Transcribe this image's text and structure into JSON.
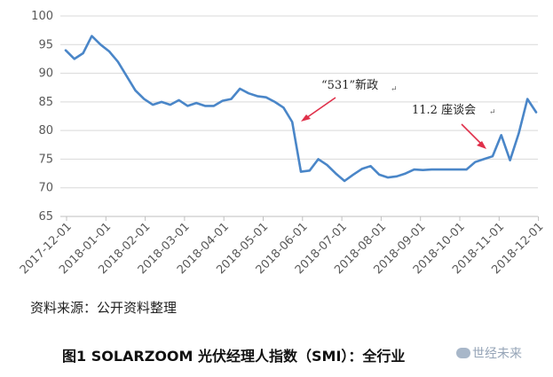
{
  "chart_data": {
    "type": "line",
    "ylim": [
      65,
      100
    ],
    "y_ticks": [
      65,
      70,
      75,
      80,
      85,
      90,
      95,
      100
    ],
    "x_tick_labels": [
      "2017-12-01",
      "2018-01-01",
      "2018-02-01",
      "2018-03-01",
      "2018-04-01",
      "2018-05-01",
      "2018-06-01",
      "2018-07-01",
      "2018-08-01",
      "2018-09-01",
      "2018-10-01",
      "2018-11-01",
      "2018-12-01"
    ],
    "grid": "horizontal",
    "line_color": "#4a86c8",
    "series": [
      {
        "values": [
          94.0,
          92.5,
          93.5,
          96.5,
          95.0,
          93.8,
          92.0,
          89.5,
          87.0,
          85.5,
          84.5,
          85.0,
          84.5,
          85.3,
          84.3,
          84.8,
          84.3,
          84.3,
          85.2,
          85.5,
          87.3,
          86.5,
          86.0,
          85.8,
          85.0,
          84.0,
          81.5,
          72.8,
          73.0,
          75.0,
          74.0,
          72.5,
          71.2,
          72.3,
          73.3,
          73.8,
          72.3,
          71.8,
          72.0,
          72.5,
          73.2,
          73.1,
          73.2,
          73.2,
          73.2,
          73.2,
          73.2,
          74.5,
          75.0,
          75.5,
          79.2,
          74.8,
          79.5,
          85.5,
          83.2
        ]
      }
    ],
    "annotations": [
      {
        "text": "“531”新政"
      },
      {
        "text": "11.2 座谈会"
      }
    ]
  },
  "source_text": "资料来源：公开资料整理",
  "caption": "图1 SOLARZOOM 光伏经理人指数（SMI）：全行业",
  "watermark": "世经未来"
}
